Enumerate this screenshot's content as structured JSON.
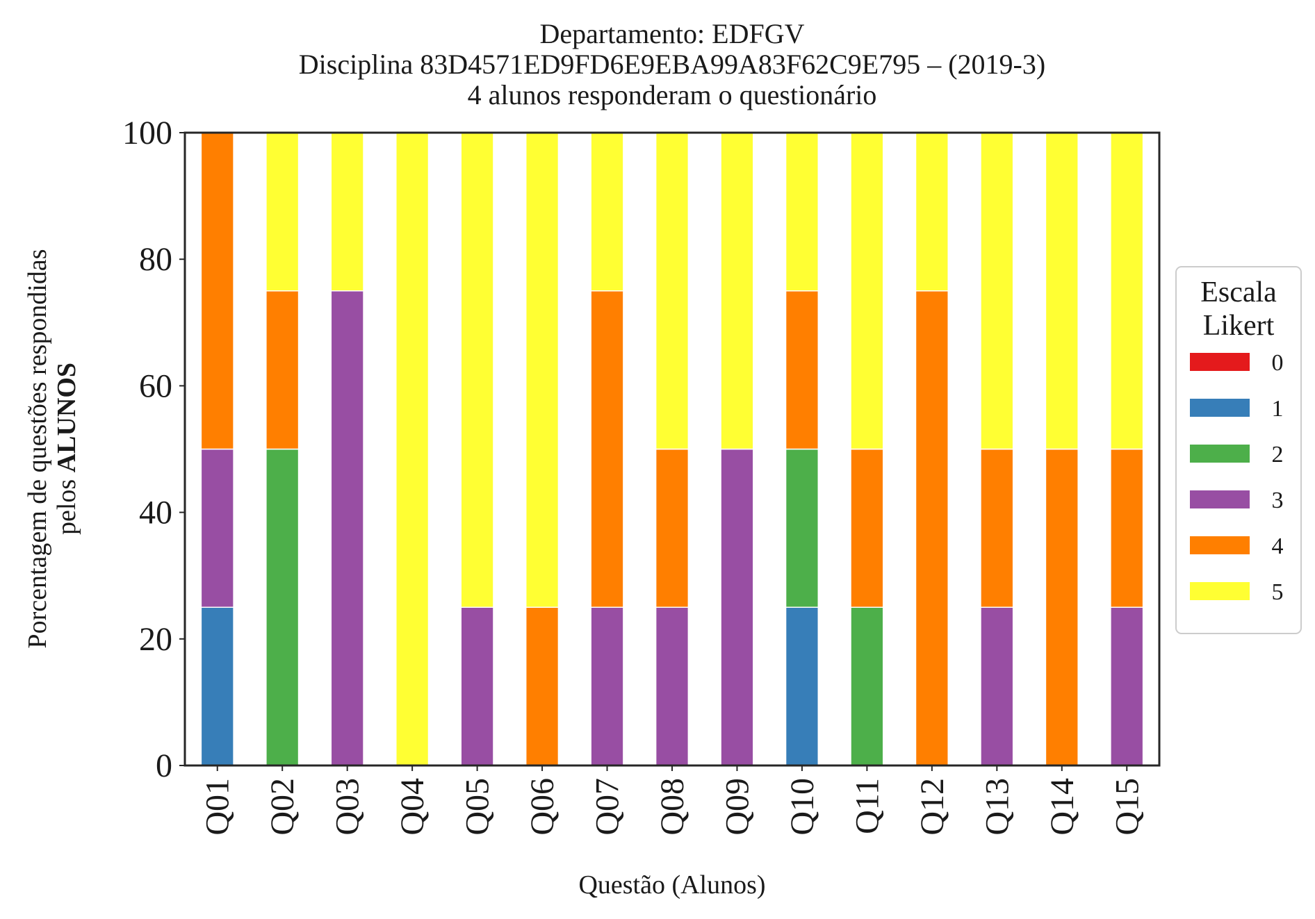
{
  "chart_data": {
    "type": "bar",
    "stacked": true,
    "title_lines": [
      "Departamento: EDFGV",
      "Disciplina 83D4571ED9FD6E9EBA99A83F62C9E795 – (2019-3)",
      "4 alunos responderam o questionário"
    ],
    "xlabel": "Questão (Alunos)",
    "ylabel_line1": "Porcentagem de questões respondidas",
    "ylabel_line2_prefix": "pelos ",
    "ylabel_line2_bold": "ALUNOS",
    "ylim": [
      0,
      100
    ],
    "yticks": [
      "0",
      "20",
      "40",
      "60",
      "80",
      "100"
    ],
    "grid": false,
    "legend": {
      "title_lines": [
        "Escala",
        "Likert"
      ],
      "placement": "right"
    },
    "categories": [
      "Q01",
      "Q02",
      "Q03",
      "Q04",
      "Q05",
      "Q06",
      "Q07",
      "Q08",
      "Q09",
      "Q10",
      "Q11",
      "Q12",
      "Q13",
      "Q14",
      "Q15"
    ],
    "series": [
      {
        "name": "0",
        "color": "#e41a1c",
        "values": [
          0,
          0,
          0,
          0,
          0,
          0,
          0,
          0,
          0,
          0,
          0,
          0,
          0,
          0,
          0
        ]
      },
      {
        "name": "1",
        "color": "#377eb8",
        "values": [
          25,
          0,
          0,
          0,
          0,
          0,
          0,
          0,
          0,
          25,
          0,
          0,
          0,
          0,
          0
        ]
      },
      {
        "name": "2",
        "color": "#4daf4a",
        "values": [
          0,
          50,
          0,
          0,
          0,
          0,
          0,
          0,
          0,
          25,
          25,
          0,
          0,
          0,
          0
        ]
      },
      {
        "name": "3",
        "color": "#984ea3",
        "values": [
          25,
          0,
          75,
          0,
          25,
          0,
          25,
          25,
          50,
          0,
          0,
          0,
          25,
          0,
          25
        ]
      },
      {
        "name": "4",
        "color": "#ff7f00",
        "values": [
          50,
          25,
          0,
          0,
          0,
          25,
          50,
          25,
          0,
          25,
          25,
          75,
          25,
          50,
          25
        ]
      },
      {
        "name": "5",
        "color": "#ffff33",
        "values": [
          0,
          25,
          25,
          100,
          75,
          75,
          25,
          50,
          50,
          25,
          50,
          25,
          50,
          50,
          50
        ]
      }
    ]
  }
}
